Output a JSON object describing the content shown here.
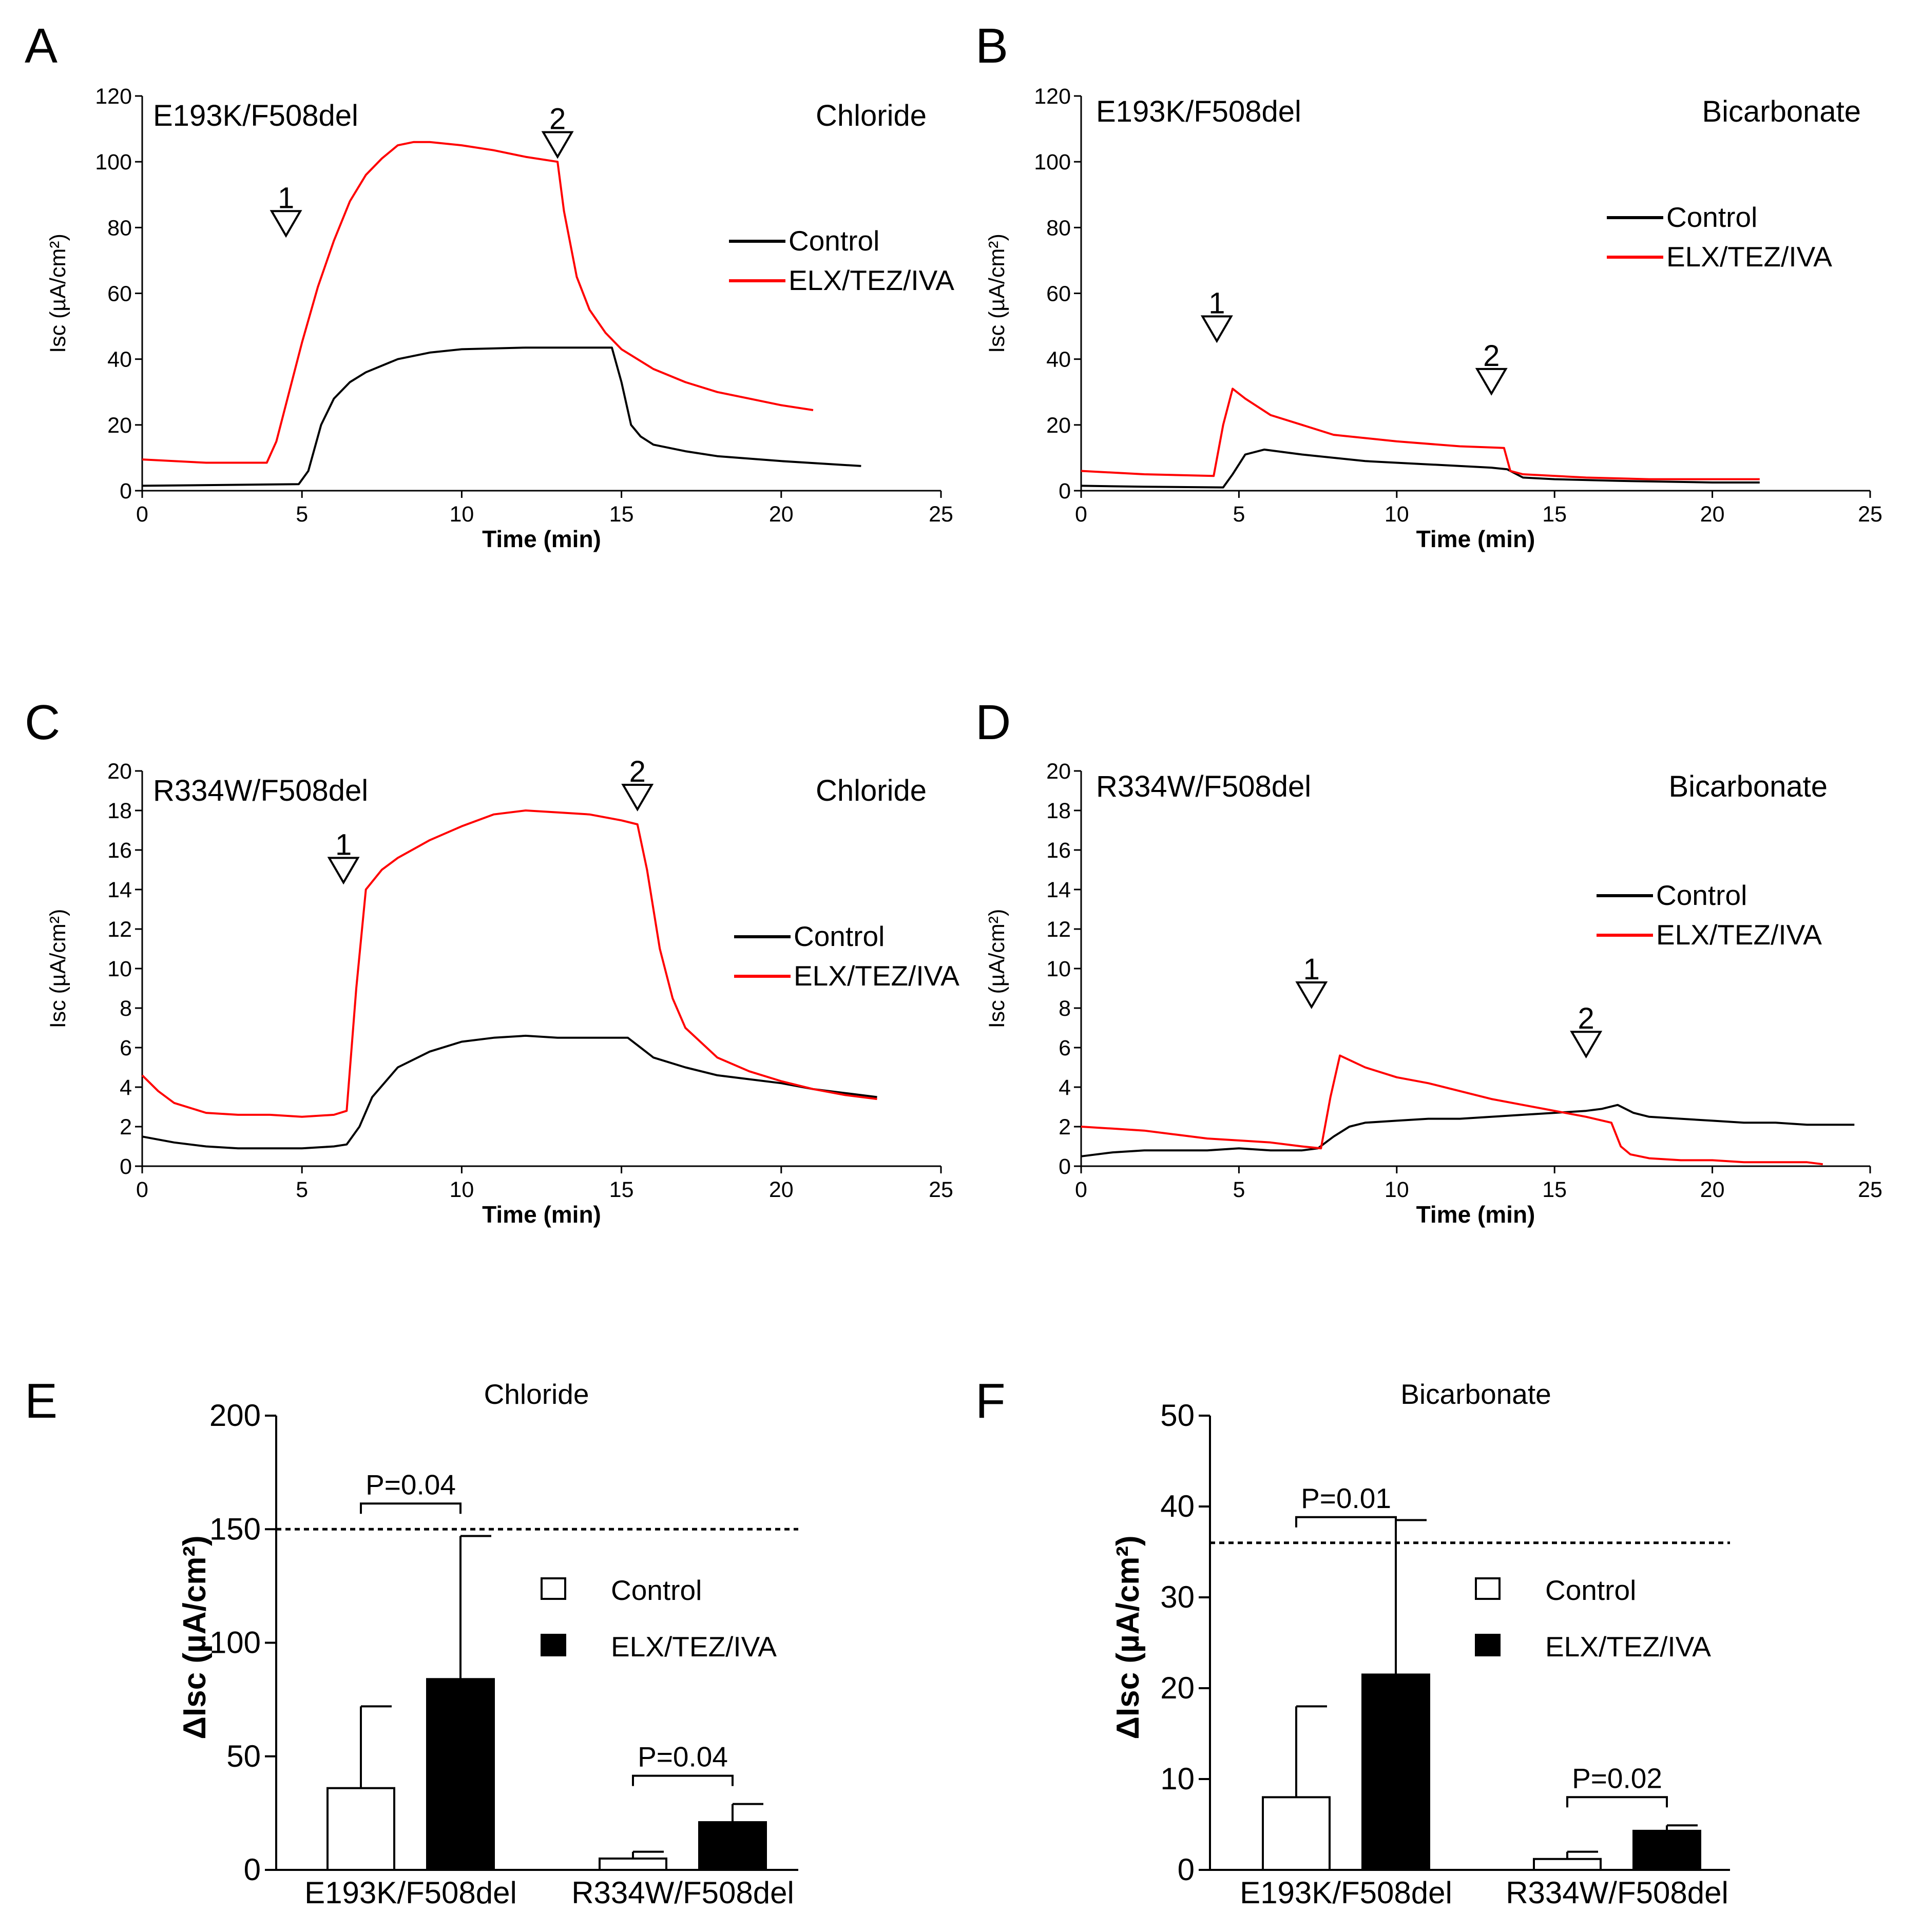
{
  "chart_data": [
    {
      "panel": "A",
      "type": "line",
      "title_left": "E193K/F508del",
      "title_right": "Chloride",
      "xlabel": "Time (min)",
      "ylabel": "Isc (µA/cm²)",
      "xlim": [
        0,
        25
      ],
      "ylim": [
        0,
        120
      ],
      "xticks": [
        0,
        5,
        10,
        15,
        20,
        25
      ],
      "yticks": [
        0,
        20,
        40,
        60,
        80,
        100,
        120
      ],
      "legend": [
        "Control",
        "ELX/TEZ/IVA"
      ],
      "markers": [
        {
          "label": "1",
          "x": 4.5,
          "y": 85
        },
        {
          "label": "2",
          "x": 13.0,
          "y": 109
        }
      ],
      "series": [
        {
          "name": "Control",
          "color": "#000000",
          "x": [
            0,
            3,
            4.9,
            5.2,
            5.6,
            6,
            6.5,
            7,
            8,
            9,
            10,
            12,
            14.7,
            15.0,
            15.3,
            15.6,
            16,
            17,
            18,
            20,
            22.5
          ],
          "y": [
            1.5,
            1.8,
            2,
            6,
            20,
            28,
            33,
            36,
            40,
            42,
            43,
            43.5,
            43.5,
            33,
            20,
            16.5,
            14,
            12,
            10.5,
            9,
            7.5
          ]
        },
        {
          "name": "ELX/TEZ/IVA",
          "color": "#ff0000",
          "x": [
            0,
            2,
            3.9,
            4.2,
            4.6,
            5,
            5.5,
            6,
            6.5,
            7,
            7.5,
            8,
            8.5,
            9,
            10,
            11,
            12,
            13,
            13.2,
            13.6,
            14,
            14.5,
            15,
            16,
            17,
            18,
            19,
            20,
            21
          ],
          "y": [
            9.5,
            8.5,
            8.5,
            15,
            30,
            45,
            62,
            76,
            88,
            96,
            101,
            105,
            106,
            106,
            105,
            103.5,
            101.5,
            100,
            85,
            65,
            55,
            48,
            43,
            37,
            33,
            30,
            28,
            26,
            24.5
          ]
        }
      ]
    },
    {
      "panel": "B",
      "type": "line",
      "title_left": "E193K/F508del",
      "title_right": "Bicarbonate",
      "xlabel": "Time (min)",
      "ylabel": "Isc (µA/cm²)",
      "xlim": [
        0,
        25
      ],
      "ylim": [
        0,
        120
      ],
      "xticks": [
        0,
        5,
        10,
        15,
        20,
        25
      ],
      "yticks": [
        0,
        20,
        40,
        60,
        80,
        100,
        120
      ],
      "legend": [
        "Control",
        "ELX/TEZ/IVA"
      ],
      "markers": [
        {
          "label": "1",
          "x": 4.3,
          "y": 53
        },
        {
          "label": "2",
          "x": 13.0,
          "y": 37
        }
      ],
      "series": [
        {
          "name": "Control",
          "color": "#000000",
          "x": [
            0,
            2,
            4.5,
            4.8,
            5.2,
            5.8,
            7,
            9,
            11,
            13,
            13.5,
            14,
            15,
            17,
            20,
            21.5
          ],
          "y": [
            1.5,
            1.2,
            1,
            5,
            11,
            12.5,
            11,
            9,
            8,
            7,
            6.5,
            4,
            3.5,
            3,
            2.5,
            2.5
          ]
        },
        {
          "name": "ELX/TEZ/IVA",
          "color": "#ff0000",
          "x": [
            0,
            2,
            4.2,
            4.5,
            4.8,
            5.2,
            6,
            7,
            8,
            10,
            12,
            13.4,
            13.6,
            14,
            16,
            18,
            20,
            21.5
          ],
          "y": [
            6,
            5,
            4.5,
            20,
            31,
            28,
            23,
            20,
            17,
            15,
            13.5,
            13,
            6,
            5,
            4,
            3.5,
            3.5,
            3.5
          ]
        }
      ]
    },
    {
      "panel": "C",
      "type": "line",
      "title_left": "R334W/F508del",
      "title_right": "Chloride",
      "xlabel": "Time (min)",
      "ylabel": "Isc (µA/cm²)",
      "xlim": [
        0,
        25
      ],
      "ylim": [
        0,
        20
      ],
      "xticks": [
        0,
        5,
        10,
        15,
        20,
        25
      ],
      "yticks": [
        0,
        2,
        4,
        6,
        8,
        10,
        12,
        14,
        16,
        18,
        20
      ],
      "legend": [
        "Control",
        "ELX/TEZ/IVA"
      ],
      "markers": [
        {
          "label": "1",
          "x": 6.3,
          "y": 15.6
        },
        {
          "label": "2",
          "x": 15.5,
          "y": 19.3
        }
      ],
      "series": [
        {
          "name": "Control",
          "color": "#000000",
          "x": [
            0,
            1,
            2,
            3,
            4,
            5,
            6,
            6.4,
            6.8,
            7.2,
            8,
            9,
            10,
            11,
            12,
            13,
            14,
            15.2,
            15.6,
            16,
            17,
            18,
            19,
            20,
            21,
            22,
            23
          ],
          "y": [
            1.5,
            1.2,
            1,
            0.9,
            0.9,
            0.9,
            1,
            1.1,
            2,
            3.5,
            5,
            5.8,
            6.3,
            6.5,
            6.6,
            6.5,
            6.5,
            6.5,
            6,
            5.5,
            5,
            4.6,
            4.4,
            4.2,
            3.9,
            3.7,
            3.5
          ]
        },
        {
          "name": "ELX/TEZ/IVA",
          "color": "#ff0000",
          "x": [
            0,
            0.5,
            1,
            2,
            3,
            4,
            5,
            6,
            6.4,
            6.7,
            7,
            7.5,
            8,
            9,
            10,
            11,
            12,
            13,
            14,
            15,
            15.5,
            15.8,
            16.2,
            16.6,
            17,
            18,
            19,
            20,
            21,
            22,
            23
          ],
          "y": [
            4.6,
            3.8,
            3.2,
            2.7,
            2.6,
            2.6,
            2.5,
            2.6,
            2.8,
            9,
            14,
            15,
            15.6,
            16.5,
            17.2,
            17.8,
            18,
            17.9,
            17.8,
            17.5,
            17.3,
            15,
            11,
            8.5,
            7,
            5.5,
            4.8,
            4.3,
            3.9,
            3.6,
            3.4
          ]
        }
      ]
    },
    {
      "panel": "D",
      "type": "line",
      "title_left": "R334W/F508del",
      "title_right": "Bicarbonate",
      "xlabel": "Time (min)",
      "ylabel": "Isc (µA/cm²)",
      "xlim": [
        0,
        25
      ],
      "ylim": [
        0,
        20
      ],
      "xticks": [
        0,
        5,
        10,
        15,
        20,
        25
      ],
      "yticks": [
        0,
        2,
        4,
        6,
        8,
        10,
        12,
        14,
        16,
        18,
        20
      ],
      "legend": [
        "Control",
        "ELX/TEZ/IVA"
      ],
      "markers": [
        {
          "label": "1",
          "x": 7.3,
          "y": 9.3
        },
        {
          "label": "2",
          "x": 16.0,
          "y": 6.8
        }
      ],
      "series": [
        {
          "name": "Control",
          "color": "#000000",
          "x": [
            0,
            1,
            2,
            3,
            4,
            5,
            6,
            7,
            7.5,
            8,
            8.5,
            9,
            10,
            11,
            12,
            13,
            14,
            15,
            16,
            16.5,
            17,
            17.5,
            18,
            19,
            20,
            21,
            22,
            23,
            24.5
          ],
          "y": [
            0.5,
            0.7,
            0.8,
            0.8,
            0.8,
            0.9,
            0.8,
            0.8,
            0.9,
            1.5,
            2,
            2.2,
            2.3,
            2.4,
            2.4,
            2.5,
            2.6,
            2.7,
            2.8,
            2.9,
            3.1,
            2.7,
            2.5,
            2.4,
            2.3,
            2.2,
            2.2,
            2.1,
            2.1
          ]
        },
        {
          "name": "ELX/TEZ/IVA",
          "color": "#ff0000",
          "x": [
            0,
            1,
            2,
            3,
            4,
            5,
            6,
            7,
            7.6,
            7.9,
            8.2,
            9,
            10,
            11,
            12,
            13,
            14,
            15,
            16,
            16.8,
            17.1,
            17.4,
            18,
            19,
            20,
            21,
            22,
            23,
            23.5
          ],
          "y": [
            2,
            1.9,
            1.8,
            1.6,
            1.4,
            1.3,
            1.2,
            1.0,
            0.9,
            3.5,
            5.6,
            5.0,
            4.5,
            4.2,
            3.8,
            3.4,
            3.1,
            2.8,
            2.5,
            2.2,
            1.0,
            0.6,
            0.4,
            0.3,
            0.3,
            0.2,
            0.2,
            0.2,
            0.1
          ]
        }
      ]
    },
    {
      "panel": "E",
      "type": "bar",
      "title": "Chloride",
      "ylabel": "ΔIsc (µA/cm²)",
      "ylim": [
        0,
        200
      ],
      "yticks": [
        0,
        50,
        100,
        150,
        200
      ],
      "categories": [
        "E193K/F508del",
        "R334W/F508del"
      ],
      "series": [
        {
          "name": "Control",
          "values": [
            36,
            5
          ],
          "errors": [
            36,
            3
          ]
        },
        {
          "name": "ELX/TEZ/IVA",
          "values": [
            84,
            21
          ],
          "errors": [
            63,
            8
          ]
        }
      ],
      "reference_line": 150,
      "pvalues": [
        "P=0.04",
        "P=0.04"
      ],
      "legend": [
        "Control",
        "ELX/TEZ/IVA"
      ]
    },
    {
      "panel": "F",
      "type": "bar",
      "title": "Bicarbonate",
      "ylabel": "ΔIsc (µA/cm²)",
      "ylim": [
        0,
        50
      ],
      "yticks": [
        0,
        10,
        20,
        30,
        40,
        50
      ],
      "categories": [
        "E193K/F508del",
        "R334W/F508del"
      ],
      "series": [
        {
          "name": "Control",
          "values": [
            8,
            1.2
          ],
          "errors": [
            10,
            0.8
          ]
        },
        {
          "name": "ELX/TEZ/IVA",
          "values": [
            21.5,
            4.3
          ],
          "errors": [
            17,
            0.6
          ]
        }
      ],
      "reference_line": 36,
      "pvalues": [
        "P=0.01",
        "P=0.02"
      ],
      "legend": [
        "Control",
        "ELX/TEZ/IVA"
      ]
    }
  ]
}
